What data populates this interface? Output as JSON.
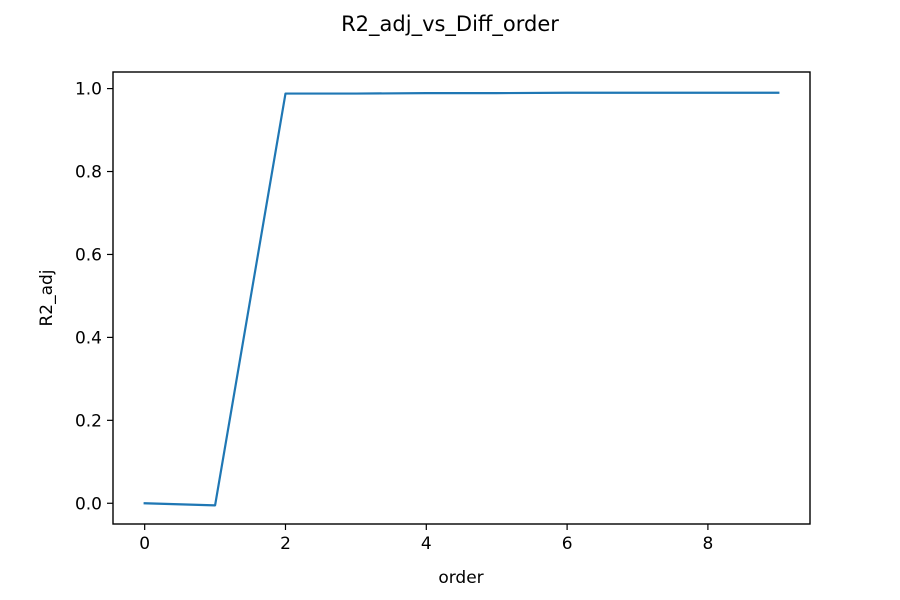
{
  "chart_data": {
    "type": "line",
    "title": "R2_adj_vs_Diff_order",
    "xlabel": "order",
    "ylabel": "R2_adj",
    "xlim": [
      -0.45,
      9.45
    ],
    "ylim": [
      -0.05,
      1.04
    ],
    "xticks": [
      0,
      2,
      4,
      6,
      8
    ],
    "yticks": [
      0.0,
      0.2,
      0.4,
      0.6,
      0.8,
      1.0
    ],
    "ytick_labels": [
      "0.0",
      "0.2",
      "0.4",
      "0.6",
      "0.8",
      "1.0"
    ],
    "grid": false,
    "line_color": "#1f77b4",
    "series": [
      {
        "x": [
          0,
          1,
          2,
          3,
          4,
          5,
          6,
          7,
          8,
          9
        ],
        "values": [
          0.0,
          -0.005,
          0.988,
          0.988,
          0.989,
          0.989,
          0.99,
          0.99,
          0.99,
          0.99
        ]
      }
    ]
  }
}
